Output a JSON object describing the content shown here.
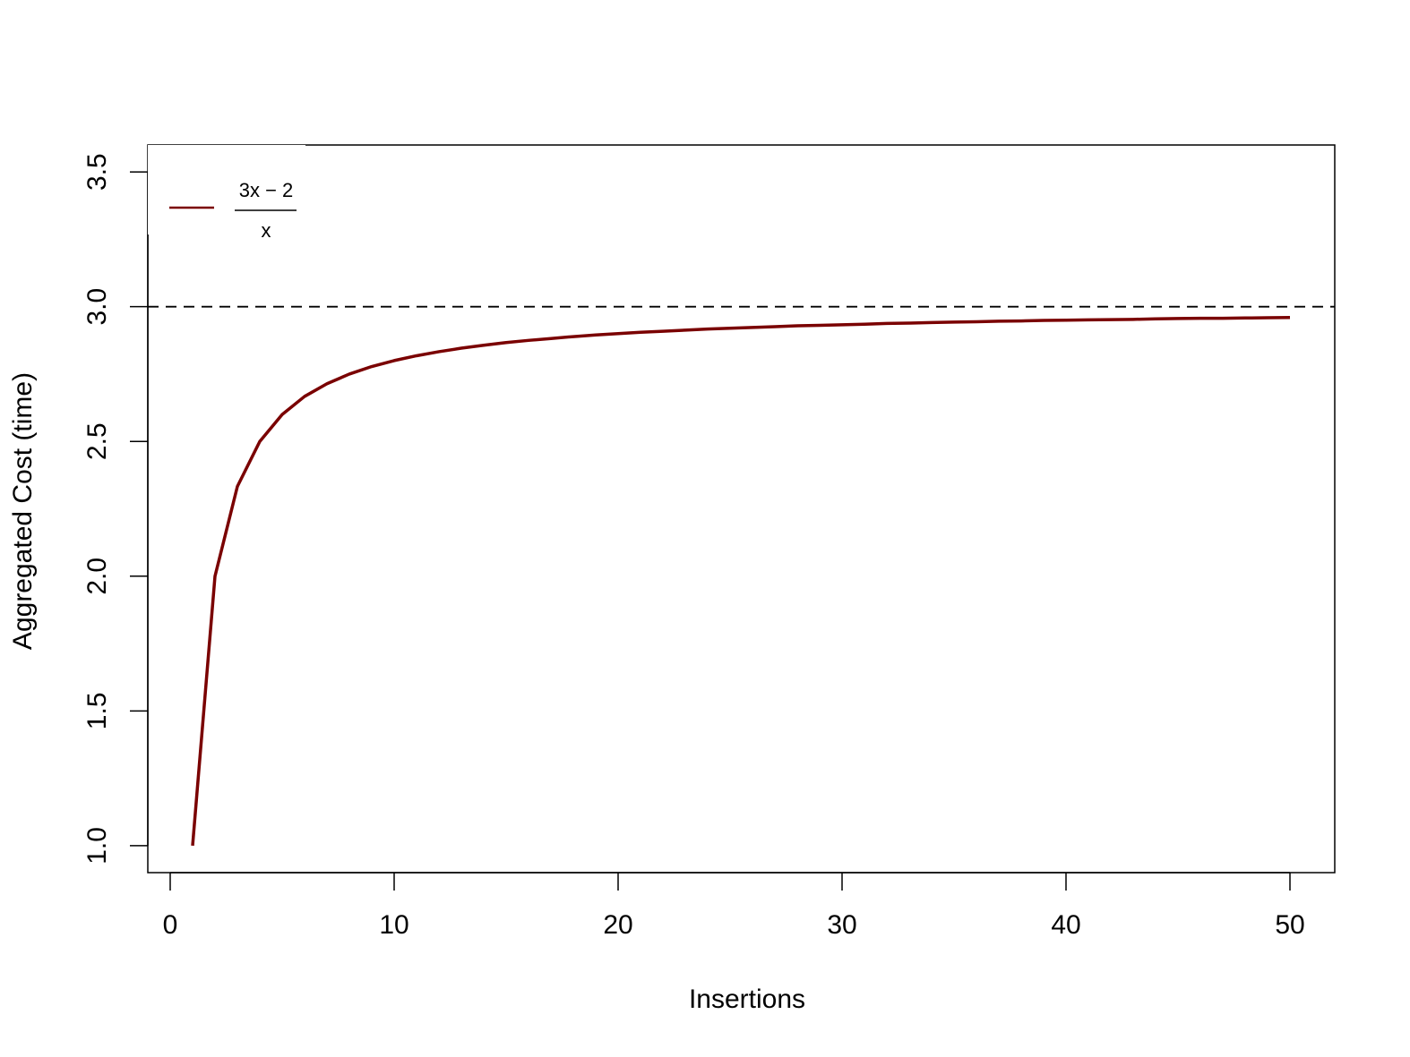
{
  "chart_data": {
    "type": "line",
    "xlabel": "Insertions",
    "ylabel": "Aggregated Cost (time)",
    "xlim": [
      -1,
      52
    ],
    "ylim": [
      0.9,
      3.6
    ],
    "x_ticks": [
      "0",
      "10",
      "20",
      "30",
      "40",
      "50"
    ],
    "y_ticks": [
      "1.0",
      "1.5",
      "2.0",
      "2.5",
      "3.0",
      "3.5"
    ],
    "grid": false,
    "legend_position": "top-left",
    "series": [
      {
        "name": "(3x − 2) / x",
        "color": "#7a0000",
        "x": [
          1,
          2,
          3,
          4,
          5,
          6,
          7,
          8,
          9,
          10,
          11,
          12,
          13,
          14,
          15,
          16,
          17,
          18,
          19,
          20,
          21,
          22,
          23,
          24,
          25,
          26,
          27,
          28,
          29,
          30,
          31,
          32,
          33,
          34,
          35,
          36,
          37,
          38,
          39,
          40,
          41,
          42,
          43,
          44,
          45,
          46,
          47,
          48,
          49,
          50
        ],
        "y": [
          1.0,
          2.0,
          2.333,
          2.5,
          2.6,
          2.667,
          2.714,
          2.75,
          2.778,
          2.8,
          2.818,
          2.833,
          2.846,
          2.857,
          2.867,
          2.875,
          2.882,
          2.889,
          2.895,
          2.9,
          2.905,
          2.909,
          2.913,
          2.917,
          2.92,
          2.923,
          2.926,
          2.929,
          2.931,
          2.933,
          2.935,
          2.938,
          2.939,
          2.941,
          2.943,
          2.944,
          2.946,
          2.947,
          2.949,
          2.95,
          2.951,
          2.952,
          2.953,
          2.955,
          2.956,
          2.957,
          2.957,
          2.958,
          2.959,
          2.96
        ]
      }
    ],
    "reference_line": {
      "y": 3.0,
      "style": "dashed",
      "color": "#000000"
    },
    "legend": {
      "numerator": "3x − 2",
      "denominator": "x"
    }
  }
}
